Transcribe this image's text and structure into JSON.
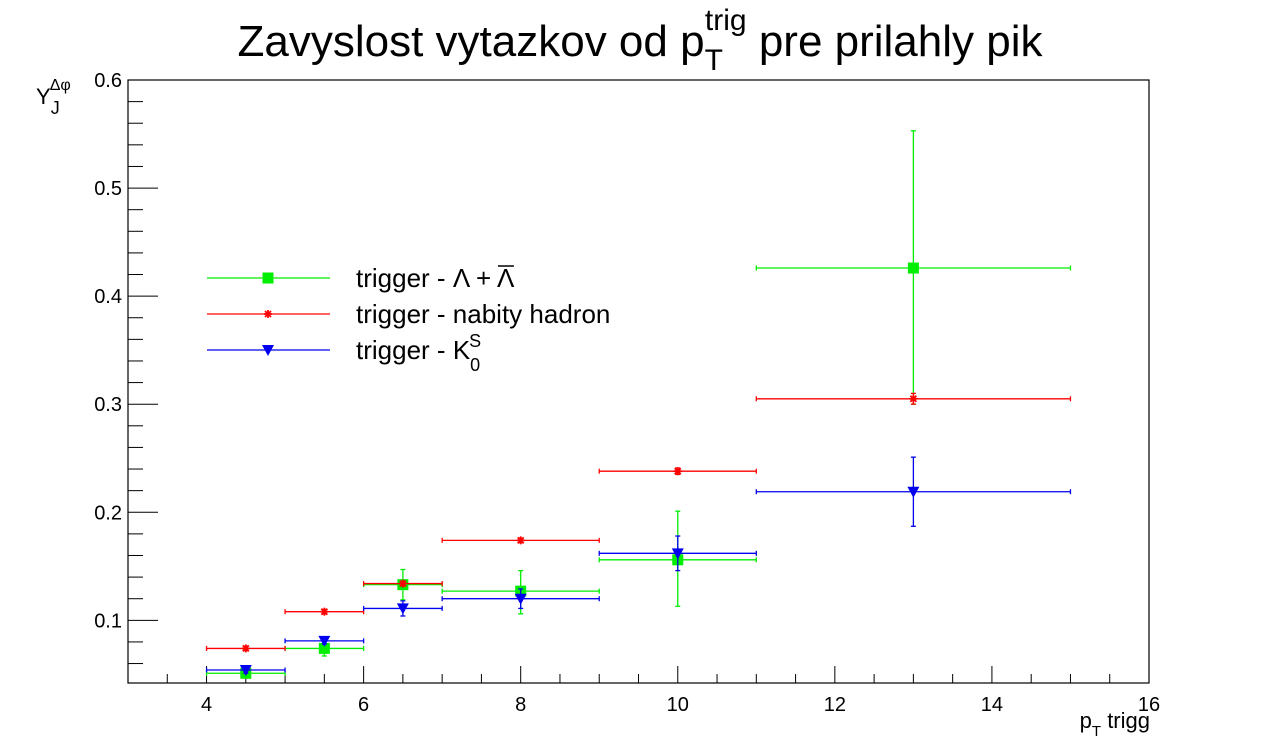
{
  "chart_data": {
    "type": "scatter",
    "title": {
      "main": "Zavyslost vytazkov od p",
      "sub": "T",
      "sup": "trig",
      "tail": " pre prilahly pik"
    },
    "xlabel": {
      "main": "p",
      "sub": "T",
      "tail": " trigg"
    },
    "ylabel": {
      "main": "Y",
      "sub": "J",
      "sup": "Δφ"
    },
    "xlim": [
      3,
      16
    ],
    "ylim": [
      0.042,
      0.6
    ],
    "x_tick_labels": [
      "4",
      "6",
      "8",
      "10",
      "12",
      "14",
      "16"
    ],
    "y_tick_labels": [
      "0.1",
      "0.2",
      "0.3",
      "0.4",
      "0.5",
      "0.6"
    ],
    "grid": false,
    "legend_position": "upper-left",
    "series": [
      {
        "name": "trigger - Λ + Λ̅",
        "legend": {
          "prefix": "trigger - ",
          "main": "Λ + Λ",
          "overline": true
        },
        "color": "#00ee00",
        "marker": "square",
        "points": [
          {
            "x": 4.5,
            "xlo": 4,
            "xhi": 5,
            "y": 0.051,
            "ylo": 0.049,
            "yhi": 0.053
          },
          {
            "x": 5.5,
            "xlo": 5,
            "xhi": 6,
            "y": 0.074,
            "ylo": 0.067,
            "yhi": 0.081
          },
          {
            "x": 6.5,
            "xlo": 6,
            "xhi": 7,
            "y": 0.133,
            "ylo": 0.119,
            "yhi": 0.147
          },
          {
            "x": 8,
            "xlo": 7,
            "xhi": 9,
            "y": 0.127,
            "ylo": 0.106,
            "yhi": 0.146
          },
          {
            "x": 10,
            "xlo": 9,
            "xhi": 11,
            "y": 0.156,
            "ylo": 0.113,
            "yhi": 0.201
          },
          {
            "x": 13,
            "xlo": 11,
            "xhi": 15,
            "y": 0.426,
            "ylo": 0.3,
            "yhi": 0.553
          }
        ]
      },
      {
        "name": "trigger - nabity hadron",
        "legend": {
          "prefix": "trigger - nabity hadron"
        },
        "color": "#ff0000",
        "marker": "star",
        "points": [
          {
            "x": 4.5,
            "xlo": 4,
            "xhi": 5,
            "y": 0.074,
            "ylo": 0.072,
            "yhi": 0.076
          },
          {
            "x": 5.5,
            "xlo": 5,
            "xhi": 6,
            "y": 0.108,
            "ylo": 0.106,
            "yhi": 0.11
          },
          {
            "x": 6.5,
            "xlo": 6,
            "xhi": 7,
            "y": 0.134,
            "ylo": 0.132,
            "yhi": 0.136
          },
          {
            "x": 8,
            "xlo": 7,
            "xhi": 9,
            "y": 0.174,
            "ylo": 0.172,
            "yhi": 0.176
          },
          {
            "x": 10,
            "xlo": 9,
            "xhi": 11,
            "y": 0.238,
            "ylo": 0.235,
            "yhi": 0.241
          },
          {
            "x": 13,
            "xlo": 11,
            "xhi": 15,
            "y": 0.305,
            "ylo": 0.3,
            "yhi": 0.31
          }
        ]
      },
      {
        "name": "trigger - K_0^S",
        "legend": {
          "prefix": "trigger - ",
          "main": "K",
          "sub": "0",
          "sup": "S"
        },
        "color": "#0000ee",
        "marker": "triangle-down",
        "points": [
          {
            "x": 4.5,
            "xlo": 4,
            "xhi": 5,
            "y": 0.054,
            "ylo": 0.051,
            "yhi": 0.057
          },
          {
            "x": 5.5,
            "xlo": 5,
            "xhi": 6,
            "y": 0.081,
            "ylo": 0.078,
            "yhi": 0.084
          },
          {
            "x": 6.5,
            "xlo": 6,
            "xhi": 7,
            "y": 0.111,
            "ylo": 0.104,
            "yhi": 0.118
          },
          {
            "x": 8,
            "xlo": 7,
            "xhi": 9,
            "y": 0.12,
            "ylo": 0.111,
            "yhi": 0.129
          },
          {
            "x": 10,
            "xlo": 9,
            "xhi": 11,
            "y": 0.162,
            "ylo": 0.146,
            "yhi": 0.178
          },
          {
            "x": 13,
            "xlo": 11,
            "xhi": 15,
            "y": 0.219,
            "ylo": 0.187,
            "yhi": 0.251
          }
        ]
      }
    ]
  }
}
